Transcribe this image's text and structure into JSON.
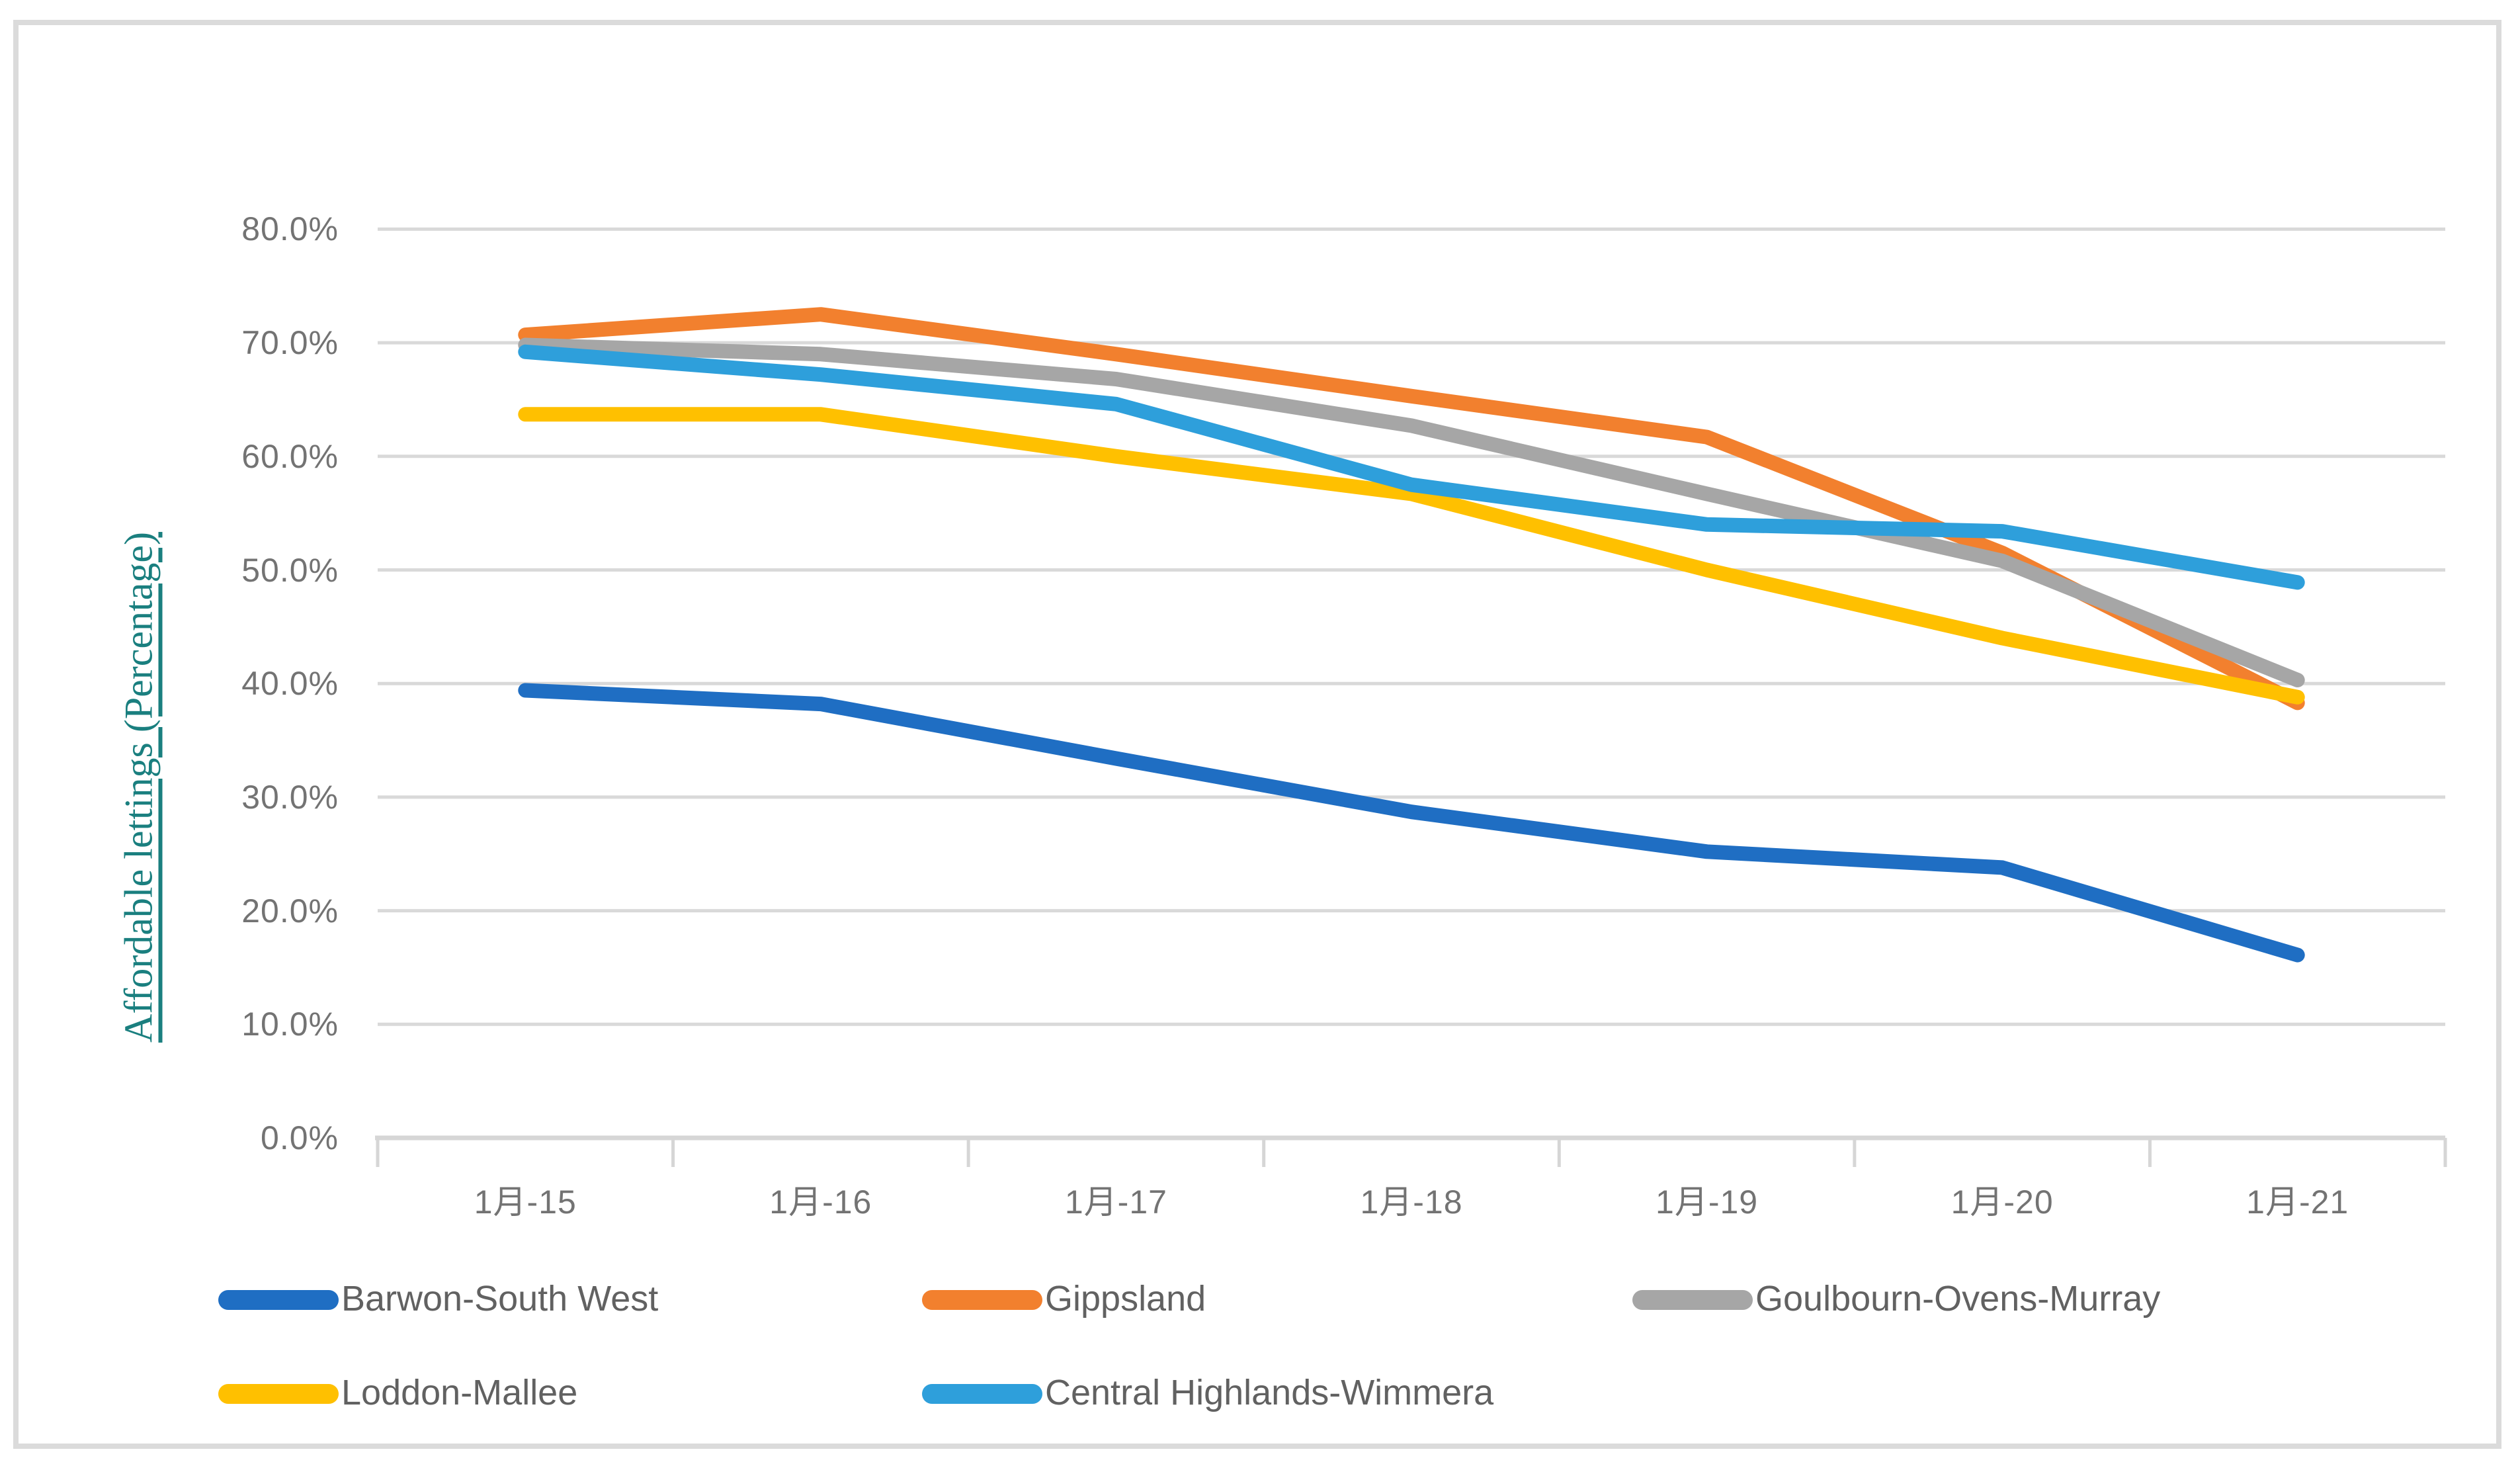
{
  "chart": {
    "y_tick_labels": [
      "80.0%",
      "70.0%",
      "60.0%",
      "50.0%",
      "40.0%",
      "30.0%",
      "20.0%",
      "10.0%",
      "0.0%"
    ],
    "x_tick_labels": [
      "1月-15",
      "1月-16",
      "1月-17",
      "1月-18",
      "1月-19",
      "1月-20",
      "1月-21"
    ],
    "y_axis_title": "Affordable lettings (Percentage)",
    "grid_color": "#D9D9D9",
    "axis_color": "#D6D6D6",
    "tick_label_color": "#737373",
    "legend_text_color": "#616161",
    "y_title_color": "#1A7F7F",
    "frame_border_color": "#DBDBDB"
  },
  "chart_data": {
    "type": "line",
    "title": "",
    "xlabel": "",
    "ylabel": "Affordable lettings (Percentage)",
    "categories": [
      "1月-15",
      "1月-16",
      "1月-17",
      "1月-18",
      "1月-19",
      "1月-20",
      "1月-21"
    ],
    "series": [
      {
        "name": "Barwon-South West",
        "color": "#1F6EC3",
        "values": [
          39.4,
          38.2,
          33.4,
          28.7,
          25.2,
          23.8,
          16.1
        ]
      },
      {
        "name": "Gippsland",
        "color": "#F2802E",
        "values": [
          70.7,
          72.5,
          69.0,
          65.3,
          61.7,
          51.5,
          38.3
        ]
      },
      {
        "name": "Goulbourn-Ovens-Murray",
        "color": "#A6A6A6",
        "values": [
          69.8,
          69.0,
          66.8,
          62.7,
          56.7,
          50.8,
          40.3
        ]
      },
      {
        "name": "Loddon-Mallee",
        "color": "#FFC000",
        "values": [
          63.7,
          63.7,
          60.0,
          56.7,
          50.0,
          44.0,
          38.8
        ]
      },
      {
        "name": "Central Highlands-Wimmera",
        "color": "#2E9FDB",
        "values": [
          69.2,
          67.2,
          64.6,
          57.5,
          54.0,
          53.4,
          48.9
        ]
      }
    ],
    "ylim": [
      0,
      80
    ],
    "y_step": 10,
    "y_tick_format": "percent_one_decimal",
    "grid": true,
    "legend_position": "bottom",
    "legend_rows": [
      [
        "Barwon-South West",
        "Gippsland",
        "Goulbourn-Ovens-Murray"
      ],
      [
        "Loddon-Mallee",
        "Central Highlands-Wimmera"
      ]
    ]
  }
}
